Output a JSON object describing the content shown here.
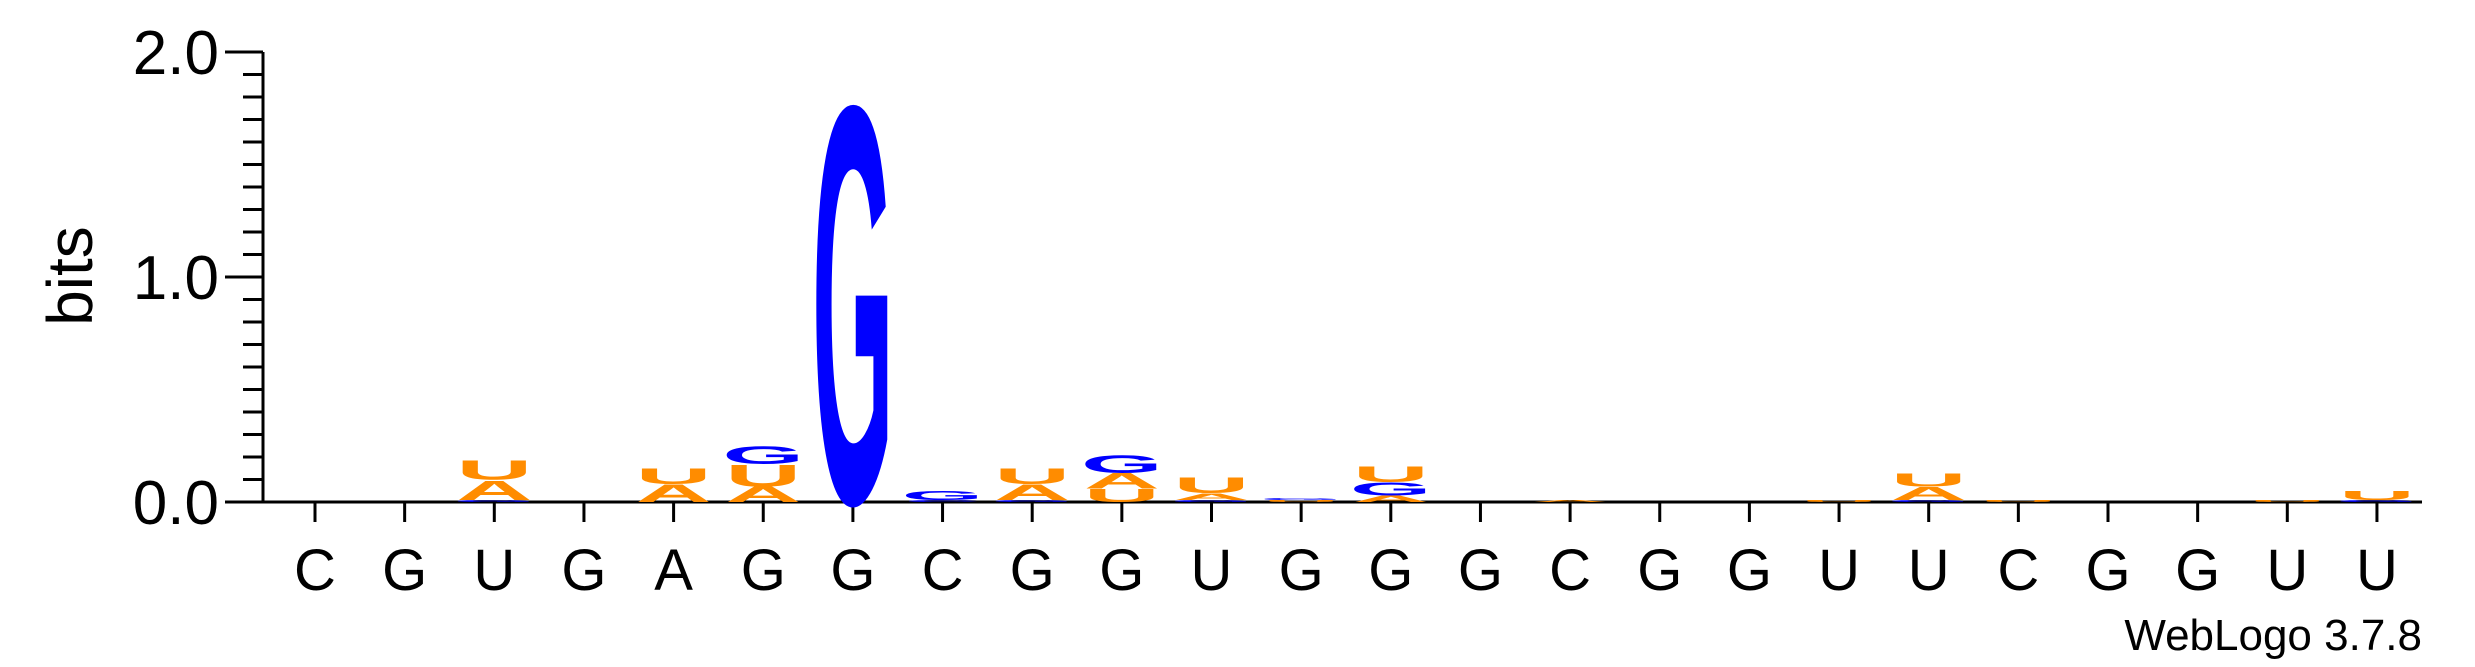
{
  "chart_data": {
    "type": "sequence-logo",
    "ylabel": "bits",
    "ylim": [
      0,
      2.0
    ],
    "yticks": [
      "0.0",
      "1.0",
      "2.0"
    ],
    "consensus": [
      "C",
      "G",
      "U",
      "G",
      "A",
      "G",
      "G",
      "C",
      "G",
      "G",
      "U",
      "G",
      "G",
      "G",
      "C",
      "G",
      "G",
      "U",
      "U",
      "C",
      "G",
      "G",
      "U",
      "U"
    ],
    "colors": {
      "G": "#0000ff",
      "U": "#ff8c00",
      "A": "#ff8c00",
      "C": "#0000ff"
    },
    "stacks": [
      [],
      [],
      [
        {
          "letter": "G",
          "bits": 0.01
        },
        {
          "letter": "A",
          "bits": 0.09
        },
        {
          "letter": "U",
          "bits": 0.09
        }
      ],
      [],
      [
        {
          "letter": "A",
          "bits": 0.08
        },
        {
          "letter": "U",
          "bits": 0.07
        }
      ],
      [
        {
          "letter": "A",
          "bits": 0.07
        },
        {
          "letter": "U",
          "bits": 0.1
        },
        {
          "letter": "G",
          "bits": 0.08
        }
      ],
      [
        {
          "letter": "G",
          "bits": 1.82
        }
      ],
      [
        {
          "letter": "C",
          "bits": 0.01
        },
        {
          "letter": "G",
          "bits": 0.04
        }
      ],
      [
        {
          "letter": "G",
          "bits": 0.01
        },
        {
          "letter": "A",
          "bits": 0.07
        },
        {
          "letter": "U",
          "bits": 0.07
        }
      ],
      [
        {
          "letter": "U",
          "bits": 0.06
        },
        {
          "letter": "A",
          "bits": 0.07
        },
        {
          "letter": "G",
          "bits": 0.08
        }
      ],
      [
        {
          "letter": "G",
          "bits": 0.01
        },
        {
          "letter": "A",
          "bits": 0.03
        },
        {
          "letter": "U",
          "bits": 0.07
        }
      ],
      [
        {
          "letter": "U",
          "bits": 0.01
        },
        {
          "letter": "G",
          "bits": 0.01
        }
      ],
      [
        {
          "letter": "A",
          "bits": 0.03
        },
        {
          "letter": "G",
          "bits": 0.06
        },
        {
          "letter": "U",
          "bits": 0.07
        }
      ],
      [],
      [
        {
          "letter": "A",
          "bits": 0.01
        }
      ],
      [],
      [],
      [
        {
          "letter": "U",
          "bits": 0.01
        }
      ],
      [
        {
          "letter": "G",
          "bits": 0.01
        },
        {
          "letter": "A",
          "bits": 0.06
        },
        {
          "letter": "U",
          "bits": 0.06
        }
      ],
      [
        {
          "letter": "U",
          "bits": 0.01
        }
      ],
      [],
      [],
      [
        {
          "letter": "U",
          "bits": 0.01
        }
      ],
      [
        {
          "letter": "G",
          "bits": 0.01
        },
        {
          "letter": "U",
          "bits": 0.04
        }
      ]
    ]
  },
  "footer": {
    "credit": "WebLogo 3.7.8"
  }
}
